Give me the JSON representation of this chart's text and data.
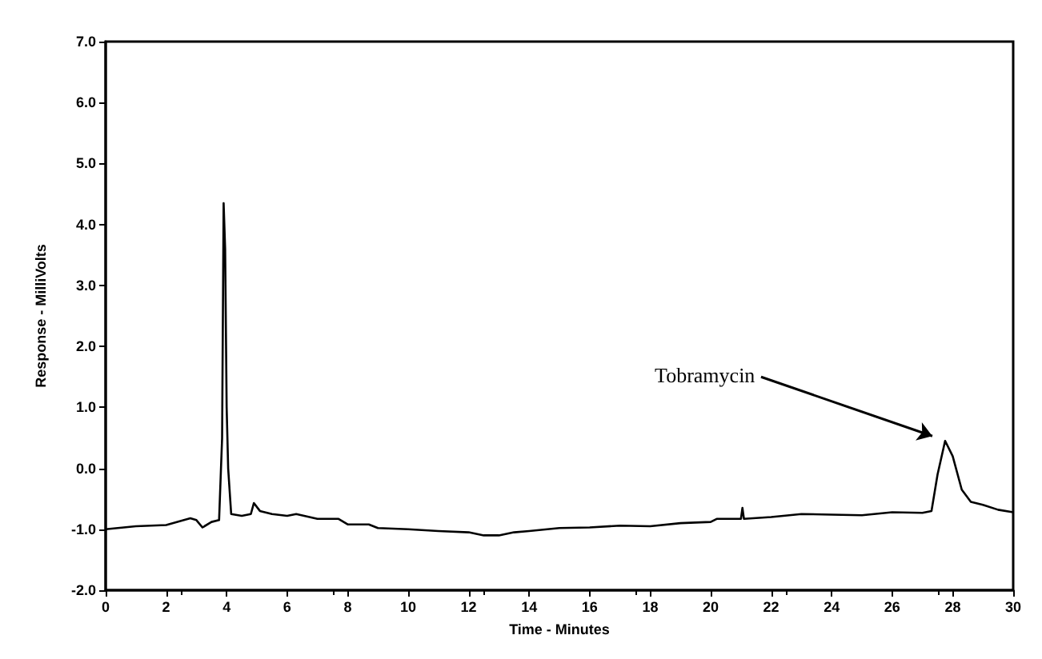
{
  "chart_data": {
    "type": "line",
    "xlabel": "Time - Minutes",
    "ylabel": "Response - MilliVolts",
    "xlim": [
      0,
      30
    ],
    "xticks": [
      0,
      2,
      4,
      6,
      8,
      10,
      12,
      14,
      16,
      18,
      20,
      22,
      24,
      26,
      28,
      30
    ],
    "ylim": [
      -2,
      7
    ],
    "yticks": [
      {
        "value": -2,
        "label": "-2.0"
      },
      {
        "value": -1,
        "label": "-1.0"
      },
      {
        "value": 0,
        "label": "0.0"
      },
      {
        "value": 1,
        "label": "1.0"
      },
      {
        "value": 2,
        "label": "2.0"
      },
      {
        "value": 3,
        "label": "3.0"
      },
      {
        "value": 4,
        "label": "4.0"
      },
      {
        "value": 5,
        "label": "5.0"
      },
      {
        "value": 6,
        "label": "6.0"
      },
      {
        "value": 7,
        "label": "7.0"
      }
    ],
    "grid": false,
    "marker": "none",
    "line_style": "solid",
    "series": [
      {
        "color": "#000000",
        "x": [
          0,
          1,
          2,
          2.8,
          3.0,
          3.2,
          3.5,
          3.75,
          3.85,
          3.9,
          3.95,
          4.0,
          4.05,
          4.15,
          4.5,
          4.8,
          4.9,
          5.1,
          5.5,
          6,
          6.3,
          7,
          7.7,
          8,
          8.7,
          9,
          10,
          11,
          12,
          12.5,
          13,
          13.5,
          14,
          15,
          16,
          17,
          18,
          19,
          20,
          20.2,
          21,
          21.05,
          21.1,
          22,
          23,
          24,
          25,
          26,
          27,
          27.3,
          27.5,
          27.75,
          28,
          28.3,
          28.6,
          29,
          29.5,
          30
        ],
        "values": [
          -1.0,
          -0.95,
          -0.93,
          -0.82,
          -0.85,
          -0.97,
          -0.88,
          -0.85,
          0.5,
          4.35,
          3.6,
          1.0,
          0,
          -0.75,
          -0.78,
          -0.75,
          -0.57,
          -0.7,
          -0.75,
          -0.78,
          -0.75,
          -0.83,
          -0.83,
          -0.92,
          -0.92,
          -0.98,
          -1.0,
          -1.03,
          -1.05,
          -1.1,
          -1.1,
          -1.05,
          -1.03,
          -0.98,
          -0.97,
          -0.94,
          -0.95,
          -0.9,
          -0.88,
          -0.83,
          -0.83,
          -0.65,
          -0.83,
          -0.8,
          -0.75,
          -0.76,
          -0.77,
          -0.72,
          -0.73,
          -0.7,
          -0.1,
          0.45,
          0.2,
          -0.35,
          -0.55,
          -0.6,
          -0.68,
          -0.72
        ]
      }
    ],
    "annotations": [
      {
        "text": "Tobramycin",
        "x": 27.75,
        "y": 0.45
      }
    ]
  }
}
